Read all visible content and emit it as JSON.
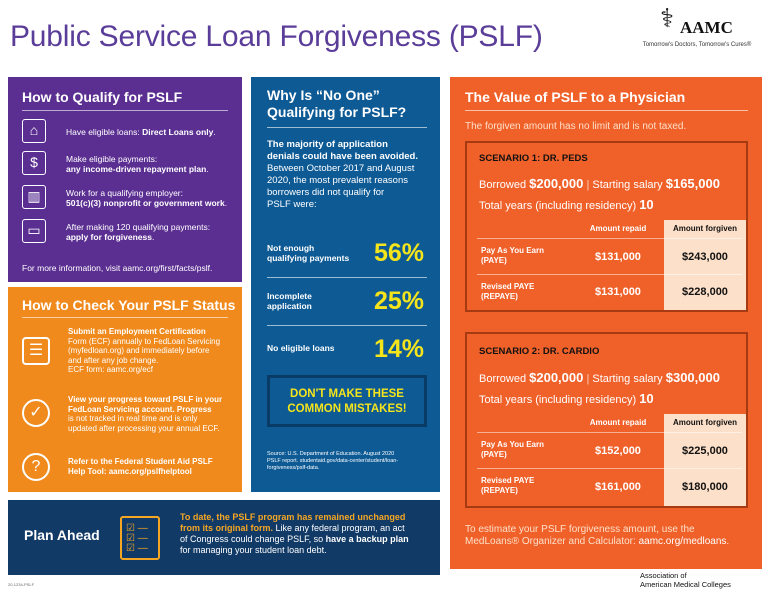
{
  "header": {
    "title": "Public Service Loan Forgiveness (PSLF)",
    "logo_name": "AAMC",
    "logo_tagline": "Tomorrow's Doctors, Tomorrow's Cures®",
    "logo_icon": "caduceus-icon"
  },
  "qualify": {
    "heading": "How to Qualify for PSLF",
    "items": [
      {
        "icon": "capitol-building-icon",
        "text": "Have eligible loans: ",
        "bold": "Direct Loans only",
        "end": "."
      },
      {
        "icon": "payment-invoice-icon",
        "text": "Make eligible payments:",
        "bold": "any income-driven repayment plan",
        "end": "."
      },
      {
        "icon": "office-building-icon",
        "text": "Work for a qualifying employer:",
        "bold": "501(c)(3) nonprofit or government work",
        "end": "."
      },
      {
        "icon": "wallet-icon",
        "text": "After making 120 qualifying payments:",
        "bold": "apply for forgiveness",
        "end": "."
      }
    ],
    "more_info": "For more information, visit ",
    "more_link": "aamc.org/first/facts/pslf",
    "more_end": "."
  },
  "check": {
    "heading": "How to Check Your PSLF Status",
    "items": [
      {
        "icon": "clipboard-icon",
        "l1": "Submit an Employment Certification",
        "l2": "Form (ECF) annually to FedLoan Servicing",
        "l3": "(myfedloan.org) and immediately before",
        "l4": "and after any job change.",
        "l5": "ECF form: aamc.org/ecf"
      },
      {
        "icon": "progress-check-icon",
        "l1": "View your progress toward PSLF in your",
        "l2": "FedLoan Servicing account. Progress",
        "l3": "is not tracked in real time and is only",
        "l4": "updated after processing your annual ECF.",
        "l5": ""
      },
      {
        "icon": "help-question-icon",
        "l1": "Refer to the Federal Student Aid PSLF",
        "l2": "Help Tool: aamc.org/pslfhelptool",
        "l3": "",
        "l4": "",
        "l5": ""
      }
    ]
  },
  "why": {
    "heading_l1": "Why Is “No One”",
    "heading_l2": "Qualifying for PSLF?",
    "intro_bold_l1": "The majority of application",
    "intro_bold_l2": "denials could have been avoided.",
    "intro_l3": "Between October 2017 and August",
    "intro_l4": "2020, the most prevalent reasons",
    "intro_l5": "borrowers did not qualify for",
    "intro_l6": "PSLF were:",
    "stats": [
      {
        "label_l1": "Not enough",
        "label_l2": "qualifying payments",
        "value": "56%"
      },
      {
        "label_l1": "Incomplete",
        "label_l2": "application",
        "value": "25%"
      },
      {
        "label_l1": "No eligible loans",
        "label_l2": "",
        "value": "14%"
      }
    ],
    "callout_l1": "DON'T MAKE THESE",
    "callout_l2": "COMMON MISTAKES!",
    "source_l1": "Source: U.S. Department of Education. August 2020",
    "source_l2": "PSLF report. studentaid.gov/data-center/student/loan-",
    "source_l3": "forgiveness/pslf-data."
  },
  "value": {
    "heading": "The Value of PSLF to a Physician",
    "subtitle": "The forgiven amount has no limit and is not taxed.",
    "col_repaid": "Amount repaid",
    "col_forgiven": "Amount forgiven",
    "borrowed_label": "Borrowed",
    "salary_label": "Starting salary",
    "years_label": "Total years (including residency)",
    "scenarios": [
      {
        "title": "SCENARIO 1: DR. PEDS",
        "borrowed": "$200,000",
        "salary": "$165,000",
        "years": "10",
        "rows": [
          {
            "plan_l1": "Pay As You Earn",
            "plan_l2": "(PAYE)",
            "repaid": "$131,000",
            "forgiven": "$243,000"
          },
          {
            "plan_l1": "Revised PAYE",
            "plan_l2": "(REPAYE)",
            "repaid": "$131,000",
            "forgiven": "$228,000"
          }
        ]
      },
      {
        "title": "SCENARIO 2: DR. CARDIO",
        "borrowed": "$200,000",
        "salary": "$300,000",
        "years": "10",
        "rows": [
          {
            "plan_l1": "Pay As You Earn",
            "plan_l2": "(PAYE)",
            "repaid": "$152,000",
            "forgiven": "$225,000"
          },
          {
            "plan_l1": "Revised PAYE",
            "plan_l2": "(REPAYE)",
            "repaid": "$161,000",
            "forgiven": "$180,000"
          }
        ]
      }
    ],
    "estimate_l1": "To estimate your PSLF forgiveness amount, use the",
    "estimate_l2": "MedLoans® Organizer and Calculator: ",
    "estimate_link": "aamc.org/medloans",
    "estimate_end": "."
  },
  "plan": {
    "heading": "Plan Ahead",
    "icon": "checklist-icon",
    "l1_bold": "To date, the PSLF program has remained unchanged",
    "l2_bold": "from its original form.",
    "l2": " Like any federal program, an act",
    "l3": "of Congress could change PSLF, so ",
    "l3_bold": "have a backup plan",
    "l4": "for managing your student loan debt."
  },
  "footer": {
    "org_l1": "Association of",
    "org_l2": "American Medical Colleges",
    "code": "20-1234-PSLF"
  },
  "colors": {
    "purple": "#5b2f91",
    "orange": "#f08a1c",
    "blue": "#0d5a95",
    "red_orange": "#f0612a",
    "navy": "#123a66",
    "yellow": "#f4e41c"
  }
}
